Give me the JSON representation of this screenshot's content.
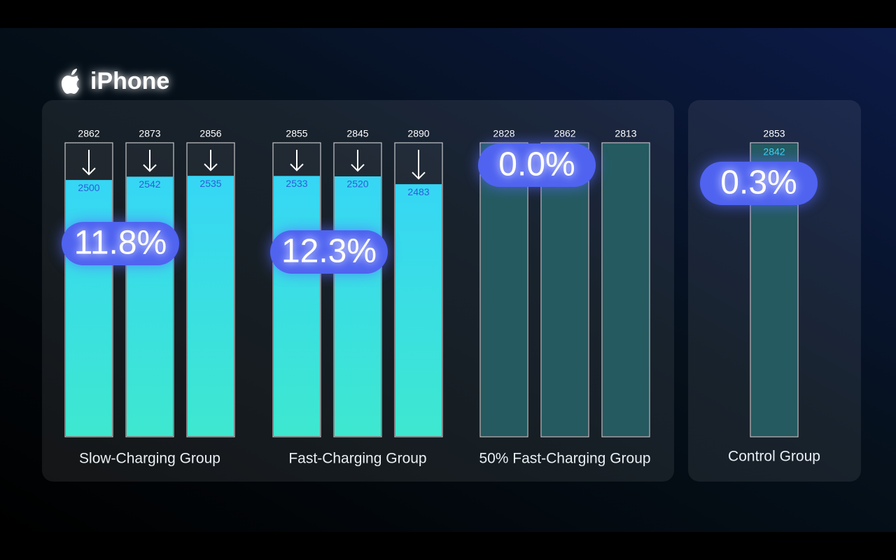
{
  "chart_data": {
    "type": "bar",
    "title": "iPhone",
    "groups": [
      {
        "name": "Slow-Charging Group",
        "change": "11.8%",
        "color": "#3ee6d8",
        "initial": [
          2862,
          2873,
          2856
        ],
        "current": [
          2500,
          2542,
          2535
        ]
      },
      {
        "name": "Fast-Charging Group",
        "change": "12.3%",
        "color": "#3ee6d8",
        "initial": [
          2855,
          2845,
          2890
        ],
        "current": [
          2533,
          2520,
          2483
        ]
      },
      {
        "name": "50% Fast-Charging Group",
        "change": "0.0%",
        "color": "#245a60",
        "initial": [
          2828,
          2862,
          2813
        ]
      },
      {
        "name": "Control Group",
        "change": "0.3%",
        "color": "#245a60",
        "initial": [
          2853
        ],
        "current": [
          2842
        ]
      }
    ]
  }
}
